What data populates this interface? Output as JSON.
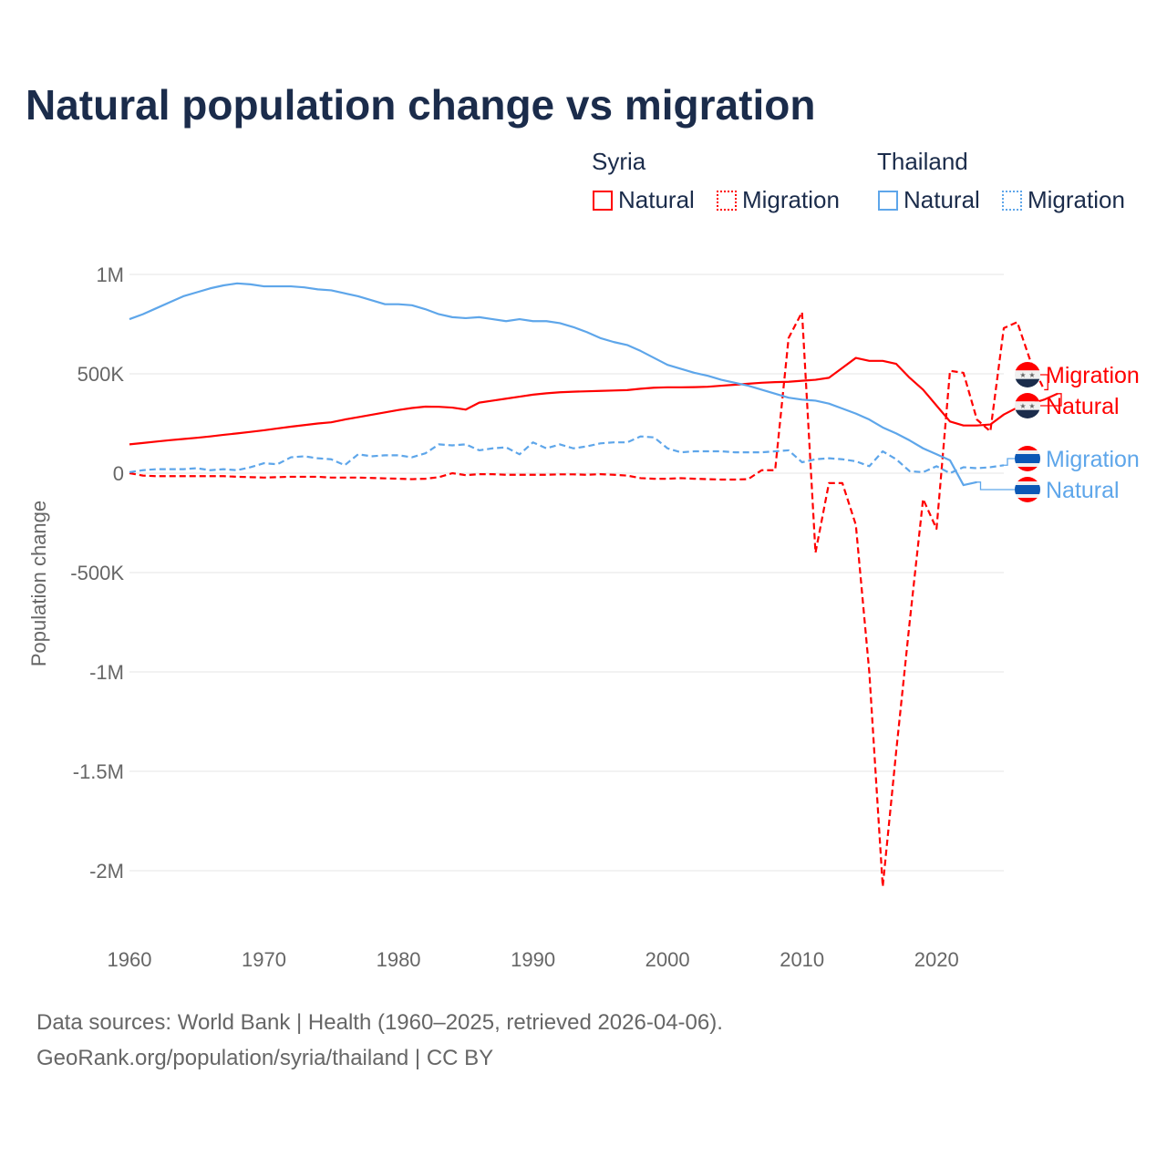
{
  "chart_data": {
    "type": "line",
    "title": "Natural population change vs migration",
    "xlabel": "",
    "ylabel": "Population change",
    "xlim": [
      1960,
      2025
    ],
    "ylim": [
      -2100000,
      1000000
    ],
    "x_ticks": [
      1960,
      1970,
      1980,
      1990,
      2000,
      2010,
      2020
    ],
    "x_tick_labels": [
      "1960",
      "1970",
      "1980",
      "1990",
      "2000",
      "2010",
      "2020"
    ],
    "y_ticks": [
      1000000,
      500000,
      0,
      -500000,
      -1000000,
      -1500000,
      -2000000
    ],
    "y_tick_labels": [
      "1M",
      "500K",
      "0",
      "-500K",
      "-1M",
      "-1.5M",
      "-2M"
    ],
    "grid": true,
    "legend_placement": "top-right",
    "legend_groups": [
      {
        "name": "Syria",
        "items": [
          "Natural",
          "Migration"
        ]
      },
      {
        "name": "Thailand",
        "items": [
          "Natural",
          "Migration"
        ]
      }
    ],
    "series": [
      {
        "country": "Syria",
        "name": "Natural",
        "color": "#ff0000",
        "dash": false,
        "start_year": 1960,
        "values_k": [
          145,
          152,
          159,
          166,
          172,
          178,
          185,
          193,
          200,
          208,
          216,
          225,
          234,
          242,
          250,
          256,
          270,
          282,
          294,
          306,
          318,
          328,
          335,
          334,
          330,
          320,
          355,
          365,
          375,
          385,
          395,
          402,
          407,
          410,
          412,
          414,
          416,
          418,
          425,
          430,
          432,
          432,
          433,
          435,
          440,
          445,
          450,
          455,
          458,
          460,
          465,
          470,
          480,
          530,
          580,
          565,
          565,
          550,
          480,
          420,
          340,
          260,
          240,
          240,
          245,
          295,
          330,
          350,
          370,
          400
        ],
        "end_label": "Natural"
      },
      {
        "country": "Syria",
        "name": "Migration",
        "color": "#ff0000",
        "dash": true,
        "start_year": 1960,
        "values_k": [
          0,
          -12,
          -15,
          -15,
          -15,
          -15,
          -15,
          -15,
          -18,
          -20,
          -22,
          -20,
          -18,
          -18,
          -18,
          -22,
          -22,
          -22,
          -24,
          -26,
          -28,
          -30,
          -28,
          -20,
          0,
          -10,
          -5,
          -5,
          -8,
          -8,
          -8,
          -8,
          -6,
          -6,
          -8,
          -5,
          -8,
          -12,
          -25,
          -28,
          -28,
          -25,
          -28,
          -30,
          -32,
          -32,
          -30,
          15,
          15,
          680,
          810,
          -400,
          -50,
          -50,
          -260,
          -1000,
          -2080,
          -1400,
          -750,
          -130,
          -280,
          515,
          505,
          270,
          210,
          730,
          760,
          560,
          420
        ],
        "end_label": "Migration"
      },
      {
        "country": "Thailand",
        "name": "Natural",
        "color": "#5ea6ea",
        "dash": false,
        "start_year": 1960,
        "values_k": [
          775,
          800,
          830,
          860,
          890,
          910,
          930,
          945,
          955,
          950,
          940,
          940,
          940,
          935,
          925,
          920,
          905,
          890,
          870,
          850,
          850,
          845,
          825,
          800,
          785,
          780,
          785,
          775,
          765,
          775,
          765,
          765,
          755,
          735,
          710,
          680,
          660,
          645,
          615,
          580,
          545,
          525,
          505,
          490,
          470,
          455,
          440,
          420,
          400,
          380,
          370,
          365,
          350,
          325,
          300,
          270,
          230,
          200,
          165,
          125,
          95,
          65,
          -60,
          -45
        ],
        "end_label": "Natural"
      },
      {
        "country": "Thailand",
        "name": "Migration",
        "color": "#5ea6ea",
        "dash": true,
        "start_year": 1960,
        "values_k": [
          5,
          15,
          20,
          20,
          20,
          25,
          15,
          20,
          15,
          30,
          50,
          45,
          80,
          85,
          75,
          70,
          40,
          95,
          85,
          90,
          90,
          80,
          100,
          145,
          140,
          145,
          115,
          125,
          130,
          95,
          155,
          125,
          145,
          125,
          135,
          150,
          155,
          155,
          185,
          180,
          125,
          105,
          110,
          110,
          110,
          105,
          105,
          105,
          110,
          115,
          55,
          70,
          75,
          70,
          60,
          35,
          110,
          70,
          10,
          5,
          35,
          0,
          30,
          25,
          30,
          40
        ],
        "end_label": "Migration"
      }
    ]
  },
  "legend": {
    "syria": "Syria",
    "thailand": "Thailand",
    "natural": "Natural",
    "migration": "Migration"
  },
  "colors": {
    "syria": "#ff0000",
    "thailand": "#5ea6ea",
    "title": "#1b2c4b"
  },
  "footer": {
    "line1": "Data sources: World Bank | Health (1960–2025, retrieved 2026-04-06).",
    "line2": "GeoRank.org/population/syria/thailand | CC BY"
  }
}
